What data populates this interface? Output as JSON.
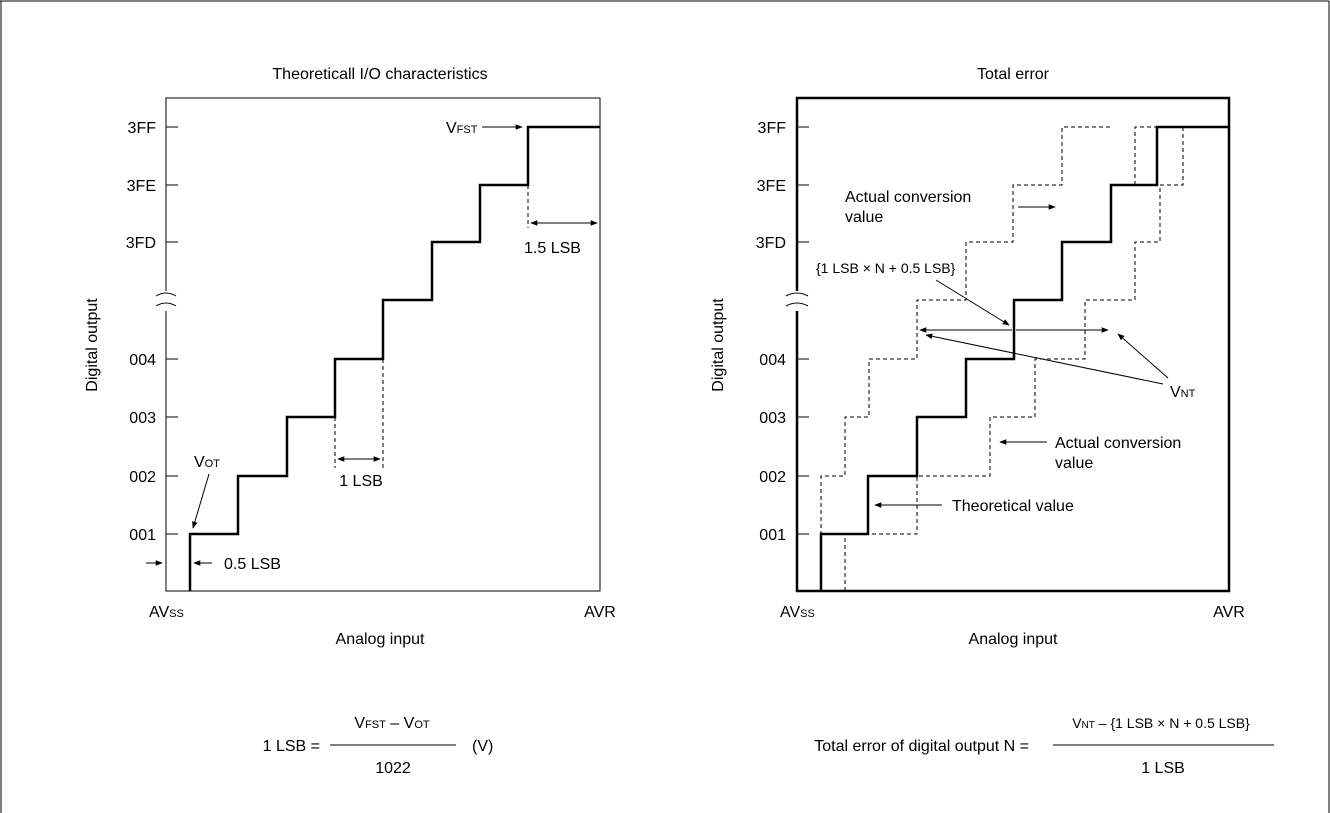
{
  "left_panel": {
    "title": "Theoreticall I/O characteristics",
    "y_axis_label": "Digital output",
    "x_axis_label": "Analog input",
    "x_min_label": {
      "main": "AV",
      "sub": "SS"
    },
    "x_max_label": "AVR",
    "y_ticks": [
      "3FF",
      "3FE",
      "3FD",
      "004",
      "003",
      "002",
      "001"
    ],
    "annotations": {
      "vfst": {
        "main": "V",
        "sub": "FST"
      },
      "vot": {
        "main": "V",
        "sub": "OT"
      },
      "one_lsb": "1 LSB",
      "half_lsb": "0.5 LSB",
      "one_half_lsb": "1.5 LSB"
    }
  },
  "right_panel": {
    "title": "Total error",
    "y_axis_label": "Digital output",
    "x_axis_label": "Analog input",
    "x_min_label": {
      "main": "AV",
      "sub": "SS"
    },
    "x_max_label": "AVR",
    "y_ticks": [
      "3FF",
      "3FE",
      "3FD",
      "004",
      "003",
      "002",
      "001"
    ],
    "annotations": {
      "actual_upper_line1": "Actual conversion",
      "actual_upper_line2": "value",
      "bracket_expr": "{1 LSB × N + 0.5 LSB}",
      "vnt": {
        "main": "V",
        "sub": "NT"
      },
      "actual_lower_line1": "Actual conversion",
      "actual_lower_line2": "value",
      "theoretical": "Theoretical value"
    }
  },
  "formulas": {
    "left": {
      "lhs": "1 LSB =",
      "numerator": {
        "a_main": "V",
        "a_sub": "FST",
        "op": " – ",
        "b_main": "V",
        "b_sub": "OT"
      },
      "denominator": "1022",
      "unit": "(V)"
    },
    "right": {
      "lhs": "Total error of digital output N =",
      "numerator": {
        "a_main": "V",
        "a_sub": "NT",
        "rest": " – {1 LSB × N + 0.5 LSB}"
      },
      "denominator": "1 LSB"
    }
  }
}
